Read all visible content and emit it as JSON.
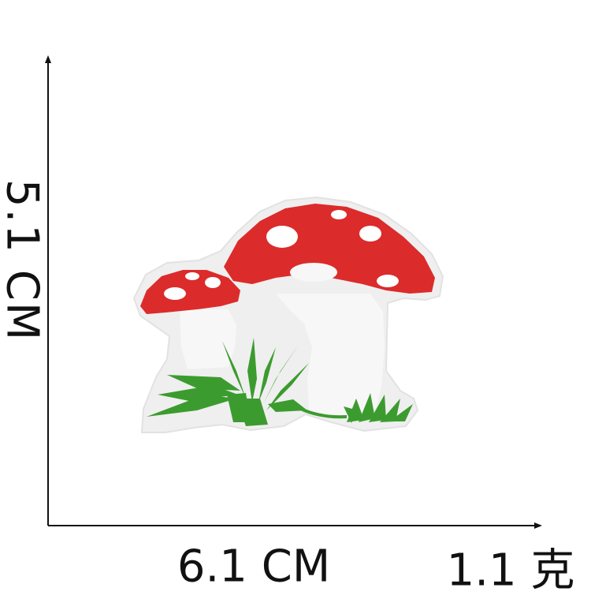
{
  "dimensions": {
    "height_label": "5.1 CM",
    "width_label": "6.1 CM",
    "weight_label": "1.1 克"
  },
  "product": {
    "icon": "mushroom-embroidered-patch",
    "colors": {
      "cap": "#dc2b2b",
      "spots": "#ffffff",
      "stem": "#f2f2f2",
      "border": "#efefef",
      "grass": "#3c9b2f"
    }
  },
  "axes": {
    "color": "#111111"
  }
}
